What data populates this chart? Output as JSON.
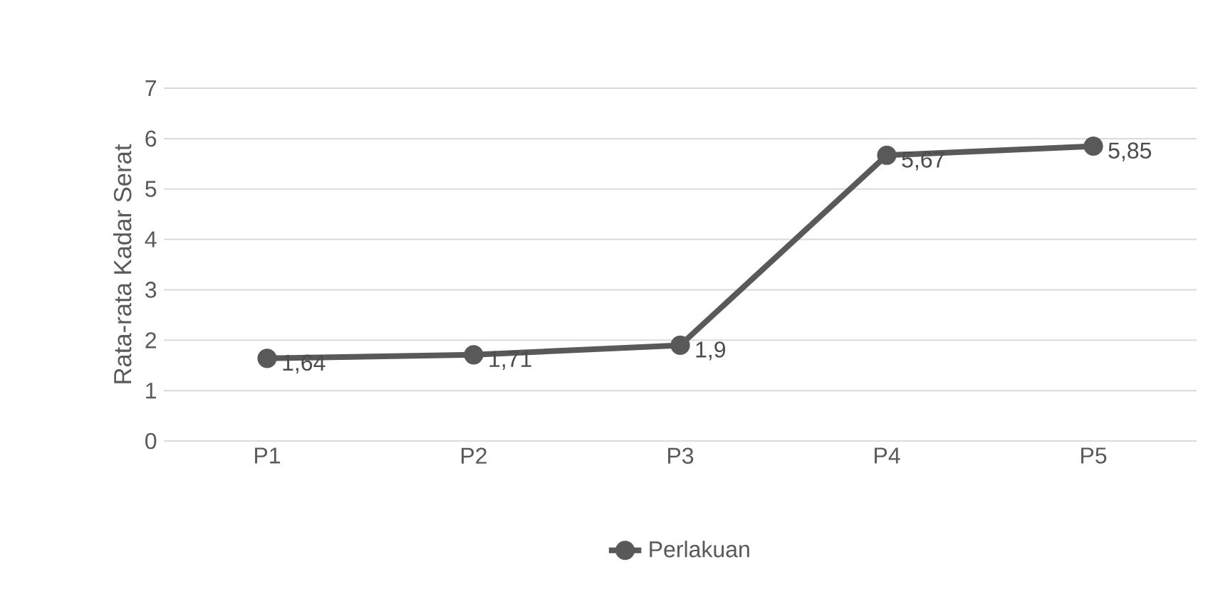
{
  "chart_data": {
    "type": "line",
    "ylabel": "Rata-rata Kadar Serat",
    "categories": [
      "P1",
      "P2",
      "P3",
      "P4",
      "P5"
    ],
    "series": [
      {
        "name": "Perlakuan",
        "color": "#595959",
        "values": [
          1.64,
          1.71,
          1.9,
          5.67,
          5.85
        ],
        "value_labels": [
          "1,64",
          "1,71",
          "1,9",
          "5,67",
          "5,85"
        ]
      }
    ],
    "ylim": [
      0,
      7
    ],
    "yticks": [
      0,
      1,
      2,
      3,
      4,
      5,
      6,
      7
    ],
    "grid": "y",
    "legend": "bottom",
    "marker": "circle",
    "line_style": "solid"
  }
}
